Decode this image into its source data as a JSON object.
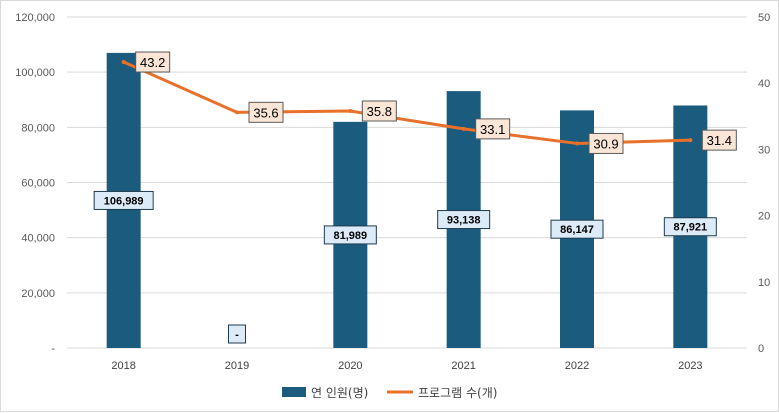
{
  "chart_data": {
    "type": "bar",
    "title": "",
    "categories": [
      "2018",
      "2019",
      "2020",
      "2021",
      "2022",
      "2023"
    ],
    "series": [
      {
        "name": "연 인원(명)",
        "type": "bar",
        "axis": "left",
        "color": "#1b5b7e",
        "values": [
          106989,
          null,
          81989,
          93138,
          86147,
          87921
        ],
        "labels": [
          "106,989",
          "-",
          "81,989",
          "93,138",
          "86,147",
          "87,921"
        ]
      },
      {
        "name": "프로그램 수(개)",
        "type": "line",
        "axis": "right",
        "color": "#e8702a",
        "values": [
          43.2,
          35.6,
          35.8,
          33.1,
          30.9,
          31.4
        ],
        "labels": [
          "43.2",
          "35.6",
          "35.8",
          "33.1",
          "30.9",
          "31.4"
        ]
      }
    ],
    "y_left": {
      "range": [
        0,
        120000
      ],
      "ticks": [
        0,
        20000,
        40000,
        60000,
        80000,
        100000,
        120000
      ],
      "tick_labels": [
        "-",
        "20,000",
        "40,000",
        "60,000",
        "80,000",
        "100,000",
        "120,000"
      ]
    },
    "y_right": {
      "range": [
        0,
        50
      ],
      "ticks": [
        0,
        10,
        20,
        30,
        40,
        50
      ],
      "tick_labels": [
        "0",
        "10",
        "20",
        "30",
        "40",
        "50"
      ]
    },
    "grid": true,
    "legend": "bottom-center",
    "colors": {
      "bar": "#1b5b7e",
      "line": "#e8702a",
      "bar_label_fill": "#dcebf7",
      "line_label_fill": "#fbe5d6",
      "grid": "#d9d9d9"
    }
  }
}
